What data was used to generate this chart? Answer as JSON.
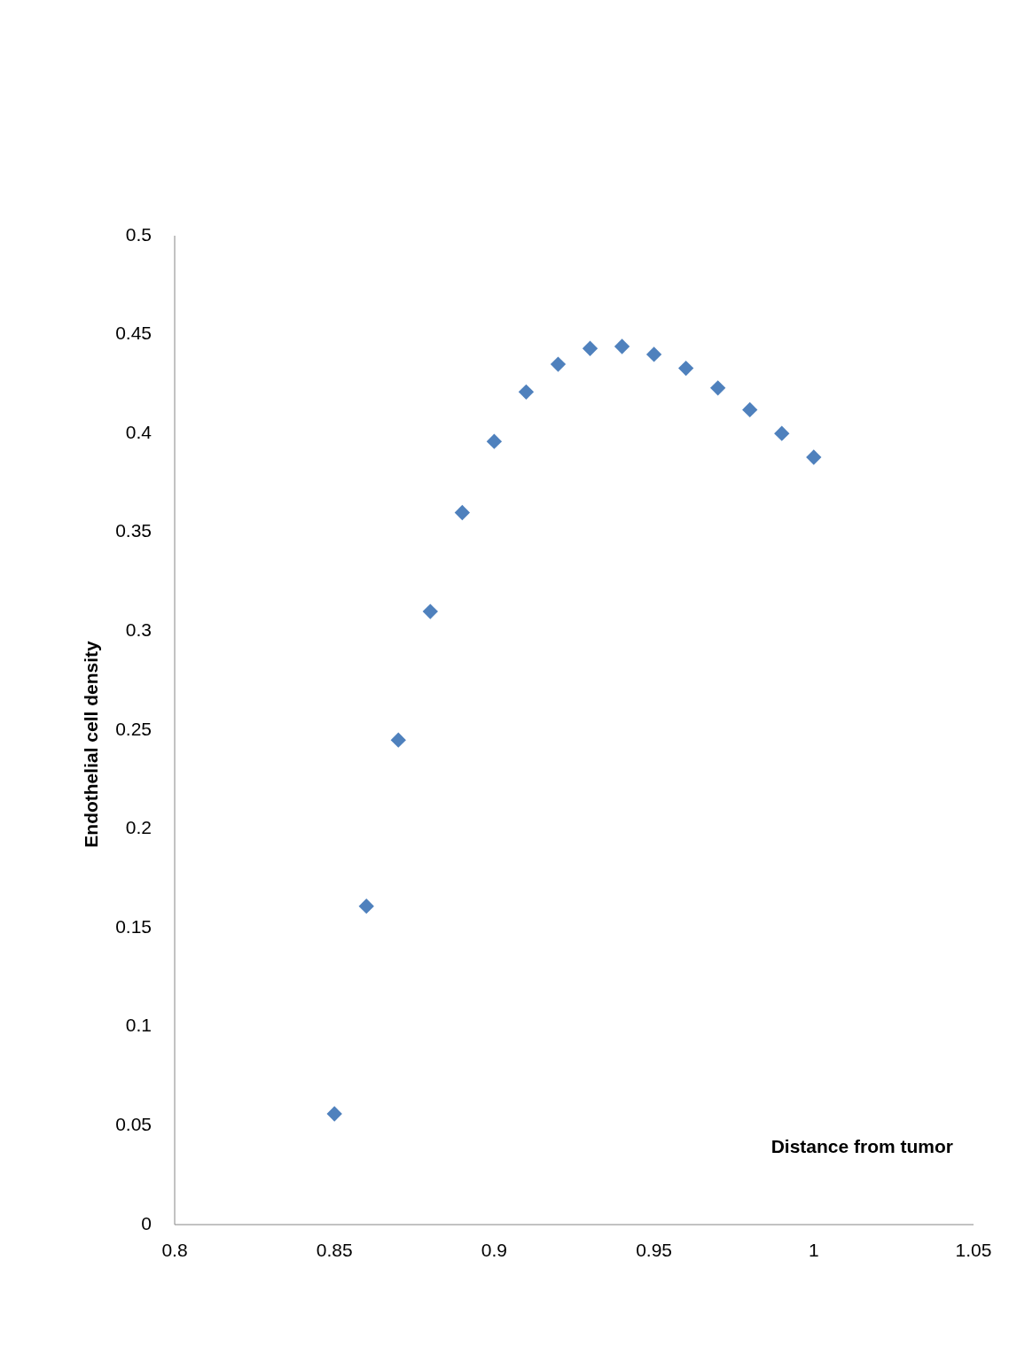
{
  "chart_data": {
    "type": "scatter",
    "xlabel": "Distance from  tumor",
    "ylabel": "Endothelial cell  density",
    "x": [
      0.85,
      0.86,
      0.87,
      0.88,
      0.89,
      0.9,
      0.91,
      0.92,
      0.93,
      0.94,
      0.95,
      0.96,
      0.97,
      0.98,
      0.99,
      1.0
    ],
    "series": [
      {
        "color": "#4f81bd",
        "values": [
          0.056,
          0.161,
          0.245,
          0.31,
          0.36,
          0.396,
          0.421,
          0.435,
          0.443,
          0.444,
          0.44,
          0.433,
          0.423,
          0.412,
          0.4,
          0.388
        ]
      }
    ],
    "xlim": [
      0.8,
      1.05
    ],
    "xticks": [
      0.8,
      0.85,
      0.9,
      0.95,
      1,
      1.05
    ],
    "ylim": [
      0,
      0.5
    ],
    "yticks": [
      0,
      0.05,
      0.1,
      0.15,
      0.2,
      0.25,
      0.3,
      0.35,
      0.4,
      0.45,
      0.5
    ],
    "marker": "diamond"
  }
}
